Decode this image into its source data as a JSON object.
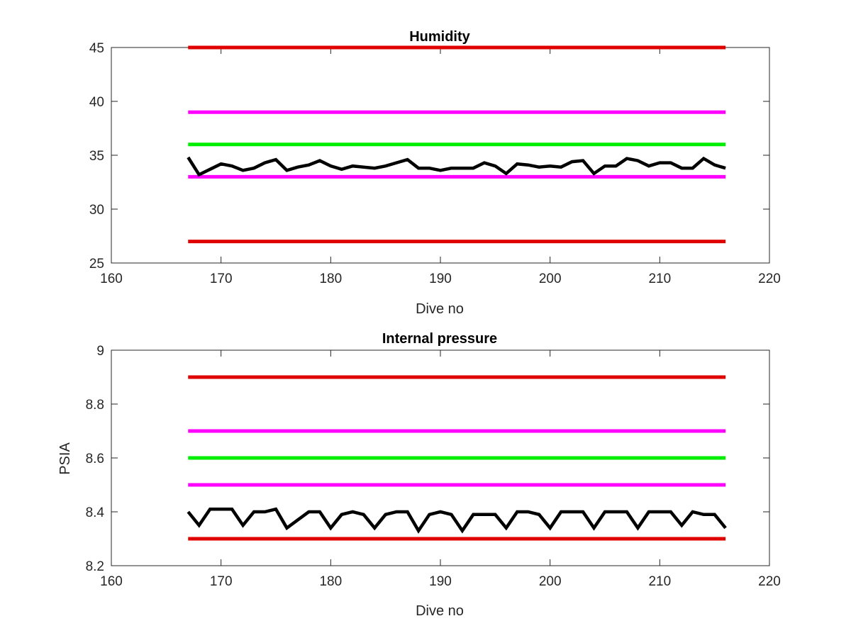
{
  "chart_data": [
    {
      "type": "line",
      "title": "Humidity",
      "xlabel": "Dive no",
      "ylabel": "",
      "xlim": [
        160,
        220
      ],
      "ylim": [
        25,
        45
      ],
      "xticks": [
        "160",
        "170",
        "180",
        "190",
        "200",
        "210",
        "220"
      ],
      "yticks": [
        "25",
        "30",
        "35",
        "40",
        "45"
      ],
      "grid": false,
      "limits": [
        {
          "y": 45,
          "color": "#e00000",
          "x": [
            167,
            216
          ]
        },
        {
          "y": 39,
          "color": "#ff00ff",
          "x": [
            167,
            216
          ]
        },
        {
          "y": 36,
          "color": "#00ee00",
          "x": [
            167,
            216
          ]
        },
        {
          "y": 33,
          "color": "#ff00ff",
          "x": [
            167,
            216
          ]
        },
        {
          "y": 27,
          "color": "#e00000",
          "x": [
            167,
            216
          ]
        }
      ],
      "series": [
        {
          "color": "#000000",
          "x": [
            167,
            168,
            169,
            170,
            171,
            172,
            173,
            174,
            175,
            176,
            177,
            178,
            179,
            180,
            181,
            182,
            183,
            184,
            185,
            186,
            187,
            188,
            189,
            190,
            191,
            192,
            193,
            194,
            195,
            196,
            197,
            198,
            199,
            200,
            201,
            202,
            203,
            204,
            205,
            206,
            207,
            208,
            209,
            210,
            211,
            212,
            213,
            214,
            215,
            216
          ],
          "values": [
            34.8,
            33.2,
            33.7,
            34.2,
            34.0,
            33.6,
            33.8,
            34.3,
            34.6,
            33.6,
            33.9,
            34.1,
            34.5,
            34.0,
            33.7,
            34.0,
            33.9,
            33.8,
            34.0,
            34.3,
            34.6,
            33.8,
            33.8,
            33.6,
            33.8,
            33.8,
            33.8,
            34.3,
            34.0,
            33.3,
            34.2,
            34.1,
            33.9,
            34.0,
            33.9,
            34.4,
            34.5,
            33.3,
            34.0,
            34.0,
            34.7,
            34.5,
            34.0,
            34.3,
            34.3,
            33.8,
            33.8,
            34.7,
            34.1,
            33.8
          ]
        }
      ]
    },
    {
      "type": "line",
      "title": "Internal pressure",
      "xlabel": "Dive no",
      "ylabel": "PSIA",
      "xlim": [
        160,
        220
      ],
      "ylim": [
        8.2,
        9
      ],
      "xticks": [
        "160",
        "170",
        "180",
        "190",
        "200",
        "210",
        "220"
      ],
      "yticks": [
        "8.2",
        "8.4",
        "8.6",
        "8.8",
        "9"
      ],
      "grid": false,
      "limits": [
        {
          "y": 8.9,
          "color": "#e00000",
          "x": [
            167,
            216
          ]
        },
        {
          "y": 8.7,
          "color": "#ff00ff",
          "x": [
            167,
            216
          ]
        },
        {
          "y": 8.6,
          "color": "#00ee00",
          "x": [
            167,
            216
          ]
        },
        {
          "y": 8.5,
          "color": "#ff00ff",
          "x": [
            167,
            216
          ]
        },
        {
          "y": 8.3,
          "color": "#e00000",
          "x": [
            167,
            216
          ]
        }
      ],
      "series": [
        {
          "color": "#000000",
          "x": [
            167,
            168,
            169,
            170,
            171,
            172,
            173,
            174,
            175,
            176,
            177,
            178,
            179,
            180,
            181,
            182,
            183,
            184,
            185,
            186,
            187,
            188,
            189,
            190,
            191,
            192,
            193,
            194,
            195,
            196,
            197,
            198,
            199,
            200,
            201,
            202,
            203,
            204,
            205,
            206,
            207,
            208,
            209,
            210,
            211,
            212,
            213,
            214,
            215,
            216
          ],
          "values": [
            8.4,
            8.35,
            8.41,
            8.41,
            8.41,
            8.35,
            8.4,
            8.4,
            8.41,
            8.34,
            8.37,
            8.4,
            8.4,
            8.34,
            8.39,
            8.4,
            8.39,
            8.34,
            8.39,
            8.4,
            8.4,
            8.33,
            8.39,
            8.4,
            8.39,
            8.33,
            8.39,
            8.39,
            8.39,
            8.34,
            8.4,
            8.4,
            8.39,
            8.34,
            8.4,
            8.4,
            8.4,
            8.34,
            8.4,
            8.4,
            8.4,
            8.34,
            8.4,
            8.4,
            8.4,
            8.35,
            8.4,
            8.39,
            8.39,
            8.34
          ]
        }
      ]
    }
  ]
}
